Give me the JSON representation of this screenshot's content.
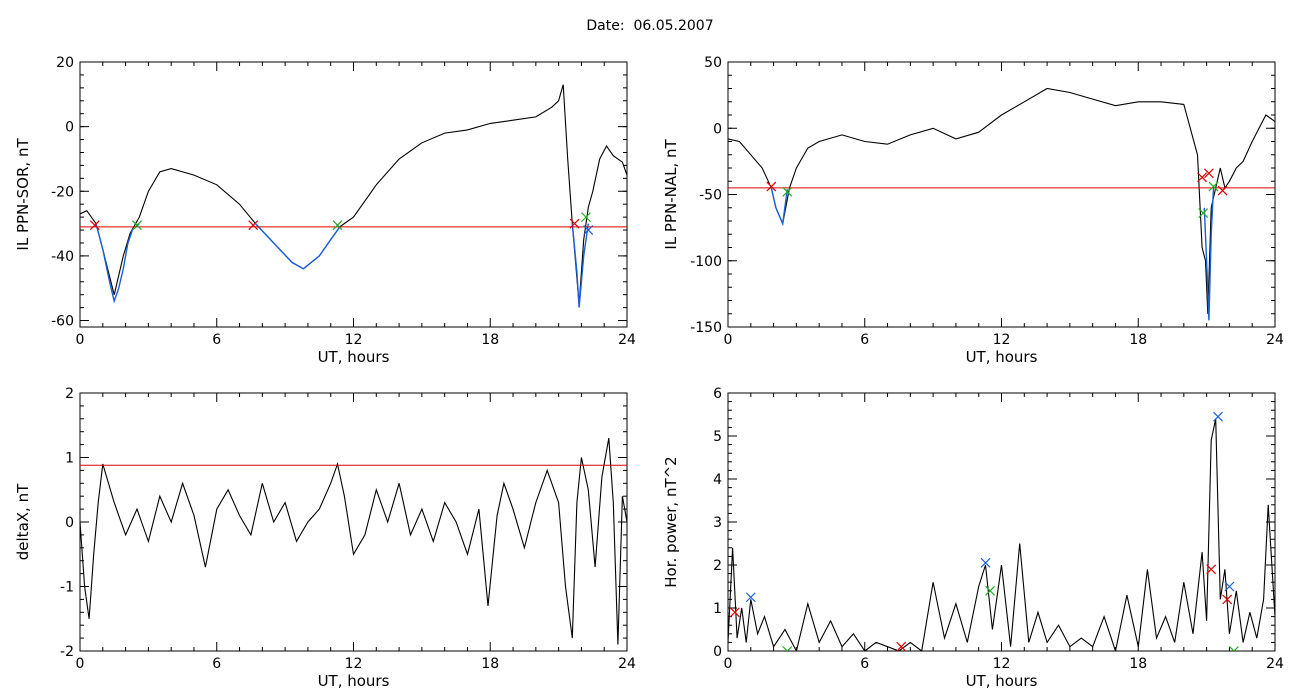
{
  "page": {
    "title": "Date:  06.05.2007"
  },
  "chart_data": [
    {
      "id": "p1",
      "type": "line",
      "xlabel": "UT, hours",
      "ylabel": "IL PPN-SOR, nT",
      "xlim": [
        0,
        24
      ],
      "ylim": [
        -62,
        20
      ],
      "xticks": [
        0,
        6,
        12,
        18,
        24
      ],
      "yticks": [
        -60,
        -40,
        -20,
        0,
        20
      ],
      "threshold": {
        "value": -31,
        "color": "#dd0000"
      },
      "series": [
        {
          "color": "#000000",
          "x": [
            0,
            0.3,
            0.7,
            1.0,
            1.5,
            1.9,
            2.2,
            2.6,
            3.0,
            3.5,
            4.0,
            5.0,
            6.0,
            7.0,
            7.7,
            8.5,
            9.3,
            9.8,
            10.5,
            11.0,
            11.4,
            12.0,
            13.0,
            14.0,
            15.0,
            16.0,
            17.0,
            18.0,
            19.0,
            20.0,
            20.7,
            21.0,
            21.2,
            21.4,
            21.6,
            21.9,
            22.1,
            22.3,
            22.5,
            22.8,
            23.1,
            23.4,
            23.8,
            24.0
          ],
          "y": [
            -27,
            -26,
            -30,
            -38,
            -52,
            -40,
            -33,
            -28,
            -20,
            -14,
            -13,
            -15,
            -18,
            -24,
            -30,
            -36,
            -42,
            -44,
            -40,
            -35,
            -31,
            -28,
            -18,
            -10,
            -5,
            -2,
            -1,
            1,
            2,
            3,
            6,
            8,
            13,
            -10,
            -30,
            -55,
            -35,
            -25,
            -20,
            -10,
            -6,
            -9,
            -11,
            -15
          ]
        }
      ],
      "segments": [
        {
          "color": "#1a5fd4",
          "x": [
            0.7,
            1.0,
            1.3,
            1.5,
            1.7,
            1.9,
            2.1,
            2.3,
            2.6
          ],
          "y": [
            -30,
            -38,
            -48,
            -54,
            -50,
            -44,
            -36,
            -32,
            -30
          ]
        },
        {
          "color": "#1a5fd4",
          "x": [
            7.7,
            8.5,
            9.3,
            9.8,
            10.5,
            11.0,
            11.4
          ],
          "y": [
            -30,
            -36,
            -42,
            -44,
            -40,
            -35,
            -31
          ]
        },
        {
          "color": "#1a5fd4",
          "x": [
            21.6,
            21.8,
            21.9,
            22.1,
            22.3
          ],
          "y": [
            -30,
            -45,
            -56,
            -40,
            -30
          ]
        }
      ],
      "markers": [
        {
          "x": 0.65,
          "y": -30.5,
          "color": "#dd0000"
        },
        {
          "x": 2.5,
          "y": -30.5,
          "color": "#22aa22"
        },
        {
          "x": 7.6,
          "y": -30.5,
          "color": "#dd0000"
        },
        {
          "x": 11.3,
          "y": -30.5,
          "color": "#22aa22"
        },
        {
          "x": 21.7,
          "y": -30,
          "color": "#dd0000"
        },
        {
          "x": 22.2,
          "y": -28,
          "color": "#22aa22"
        },
        {
          "x": 22.3,
          "y": -32,
          "color": "#1a5fd4"
        }
      ]
    },
    {
      "id": "p2",
      "type": "line",
      "xlabel": "UT, hours",
      "ylabel": "IL PPN-NAL, nT",
      "xlim": [
        0,
        24
      ],
      "ylim": [
        -150,
        50
      ],
      "xticks": [
        0,
        6,
        12,
        18,
        24
      ],
      "yticks": [
        -150,
        -100,
        -50,
        0,
        50
      ],
      "threshold": {
        "value": -45,
        "color": "#dd0000"
      },
      "series": [
        {
          "color": "#000000",
          "x": [
            0,
            0.5,
            1.0,
            1.5,
            1.9,
            2.1,
            2.4,
            2.7,
            3.0,
            3.5,
            4.0,
            5.0,
            6.0,
            7.0,
            8.0,
            9.0,
            10.0,
            11.0,
            12.0,
            13.0,
            14.0,
            15.0,
            16.0,
            17.0,
            18.0,
            19.0,
            20.0,
            20.6,
            20.8,
            20.95,
            21.05,
            21.2,
            21.4,
            21.6,
            21.8,
            22.0,
            22.3,
            22.6,
            23.0,
            23.3,
            23.6,
            24.0
          ],
          "y": [
            -8,
            -10,
            -20,
            -30,
            -45,
            -60,
            -72,
            -45,
            -30,
            -15,
            -10,
            -5,
            -10,
            -12,
            -5,
            0,
            -8,
            -3,
            10,
            20,
            30,
            27,
            22,
            17,
            20,
            20,
            18,
            -20,
            -90,
            -100,
            -140,
            -60,
            -45,
            -30,
            -45,
            -40,
            -30,
            -25,
            -10,
            0,
            10,
            5
          ]
        }
      ],
      "segments": [
        {
          "color": "#1a5fd4",
          "x": [
            1.9,
            2.1,
            2.4,
            2.6
          ],
          "y": [
            -45,
            -60,
            -72,
            -46
          ]
        },
        {
          "color": "#1a5fd4",
          "x": [
            20.9,
            21.0,
            21.1,
            21.2,
            21.3
          ],
          "y": [
            -60,
            -100,
            -145,
            -80,
            -45
          ]
        }
      ],
      "markers": [
        {
          "x": 1.9,
          "y": -44,
          "color": "#dd0000"
        },
        {
          "x": 2.6,
          "y": -48,
          "color": "#22aa22"
        },
        {
          "x": 20.8,
          "y": -37,
          "color": "#dd0000"
        },
        {
          "x": 21.1,
          "y": -34,
          "color": "#dd0000"
        },
        {
          "x": 20.85,
          "y": -64,
          "color": "#22aa22"
        },
        {
          "x": 21.3,
          "y": -44,
          "color": "#22aa22"
        },
        {
          "x": 21.7,
          "y": -47,
          "color": "#dd0000"
        }
      ]
    },
    {
      "id": "p3",
      "type": "line",
      "xlabel": "UT, hours",
      "ylabel": "deltaX, nT",
      "xlim": [
        0,
        24
      ],
      "ylim": [
        -2,
        2
      ],
      "xticks": [
        0,
        6,
        12,
        18,
        24
      ],
      "yticks": [
        -2,
        -1,
        0,
        1,
        2
      ],
      "threshold": {
        "value": 0.88,
        "color": "#dd0000"
      },
      "series": [
        {
          "color": "#000000",
          "x": [
            0,
            0.2,
            0.4,
            0.6,
            0.8,
            1.0,
            1.5,
            2.0,
            2.5,
            3.0,
            3.5,
            4.0,
            4.5,
            5.0,
            5.5,
            6.0,
            6.5,
            7.0,
            7.5,
            8.0,
            8.5,
            9.0,
            9.5,
            10.0,
            10.5,
            11.0,
            11.3,
            11.6,
            12.0,
            12.5,
            13.0,
            13.5,
            14.0,
            14.5,
            15.0,
            15.5,
            16.0,
            16.5,
            17.0,
            17.5,
            17.9,
            18.3,
            18.6,
            19.0,
            19.5,
            20.0,
            20.5,
            21.0,
            21.3,
            21.6,
            21.8,
            22.0,
            22.3,
            22.6,
            22.9,
            23.2,
            23.4,
            23.6,
            23.8,
            24.0
          ],
          "y": [
            0,
            -1.0,
            -1.5,
            -0.5,
            0.3,
            0.9,
            0.3,
            -0.2,
            0.2,
            -0.3,
            0.4,
            0.0,
            0.6,
            0.1,
            -0.7,
            0.2,
            0.5,
            0.1,
            -0.2,
            0.6,
            0.0,
            0.3,
            -0.3,
            0.0,
            0.2,
            0.6,
            0.9,
            0.4,
            -0.5,
            -0.2,
            0.5,
            0.0,
            0.6,
            -0.2,
            0.2,
            -0.3,
            0.3,
            0.0,
            -0.5,
            0.2,
            -1.3,
            0.1,
            0.6,
            0.2,
            -0.4,
            0.3,
            0.8,
            0.3,
            -1.0,
            -1.8,
            0.3,
            1.0,
            0.5,
            -0.7,
            0.7,
            1.3,
            0.3,
            -1.9,
            0.4,
            0.0
          ]
        }
      ],
      "segments": [],
      "markers": []
    },
    {
      "id": "p4",
      "type": "line",
      "xlabel": "UT, hours",
      "ylabel": "Hor. power, nT^2",
      "xlim": [
        0,
        24
      ],
      "ylim": [
        0,
        6
      ],
      "xticks": [
        0,
        6,
        12,
        18,
        24
      ],
      "yticks": [
        0,
        1,
        2,
        3,
        4,
        5,
        6
      ],
      "threshold": null,
      "series": [
        {
          "color": "#000000",
          "x": [
            0,
            0.2,
            0.4,
            0.6,
            0.8,
            1.0,
            1.3,
            1.6,
            2.0,
            2.5,
            3.0,
            3.5,
            4.0,
            4.5,
            5.0,
            5.5,
            6.0,
            6.5,
            7.0,
            7.5,
            8.0,
            8.5,
            9.0,
            9.5,
            10.0,
            10.5,
            11.0,
            11.3,
            11.6,
            12.0,
            12.4,
            12.8,
            13.2,
            13.6,
            14.0,
            14.5,
            15.0,
            15.5,
            16.0,
            16.5,
            17.0,
            17.5,
            18.0,
            18.4,
            18.8,
            19.2,
            19.6,
            20.0,
            20.4,
            20.8,
            21.0,
            21.2,
            21.4,
            21.6,
            21.8,
            22.0,
            22.3,
            22.6,
            22.9,
            23.2,
            23.5,
            23.7,
            24.0
          ],
          "y": [
            0.2,
            2.4,
            0.3,
            1.0,
            0.2,
            1.2,
            0.4,
            0.8,
            0.1,
            0.5,
            0.0,
            1.1,
            0.2,
            0.7,
            0.1,
            0.4,
            0.0,
            0.2,
            0.1,
            0.0,
            0.2,
            0.0,
            1.6,
            0.3,
            1.1,
            0.2,
            1.5,
            2.0,
            0.5,
            2.0,
            0.1,
            2.5,
            0.2,
            0.9,
            0.2,
            0.6,
            0.1,
            0.3,
            0.1,
            0.8,
            0.0,
            1.3,
            0.1,
            1.9,
            0.3,
            0.8,
            0.2,
            1.6,
            0.4,
            2.3,
            0.7,
            4.9,
            5.4,
            1.2,
            1.9,
            0.4,
            1.4,
            0.2,
            0.9,
            0.3,
            1.2,
            3.4,
            0.8
          ]
        }
      ],
      "segments": [],
      "markers": [
        {
          "x": 0.3,
          "y": 0.9,
          "color": "#dd0000"
        },
        {
          "x": 1.0,
          "y": 1.25,
          "color": "#1a5fd4"
        },
        {
          "x": 2.6,
          "y": 0.0,
          "color": "#22aa22"
        },
        {
          "x": 7.6,
          "y": 0.1,
          "color": "#dd0000"
        },
        {
          "x": 11.3,
          "y": 2.05,
          "color": "#1a5fd4"
        },
        {
          "x": 11.5,
          "y": 1.4,
          "color": "#22aa22"
        },
        {
          "x": 21.2,
          "y": 1.9,
          "color": "#dd0000"
        },
        {
          "x": 21.5,
          "y": 5.45,
          "color": "#1a5fd4"
        },
        {
          "x": 21.9,
          "y": 1.2,
          "color": "#dd0000"
        },
        {
          "x": 22.0,
          "y": 1.5,
          "color": "#1a5fd4"
        },
        {
          "x": 22.2,
          "y": 0.0,
          "color": "#22aa22"
        }
      ]
    }
  ]
}
